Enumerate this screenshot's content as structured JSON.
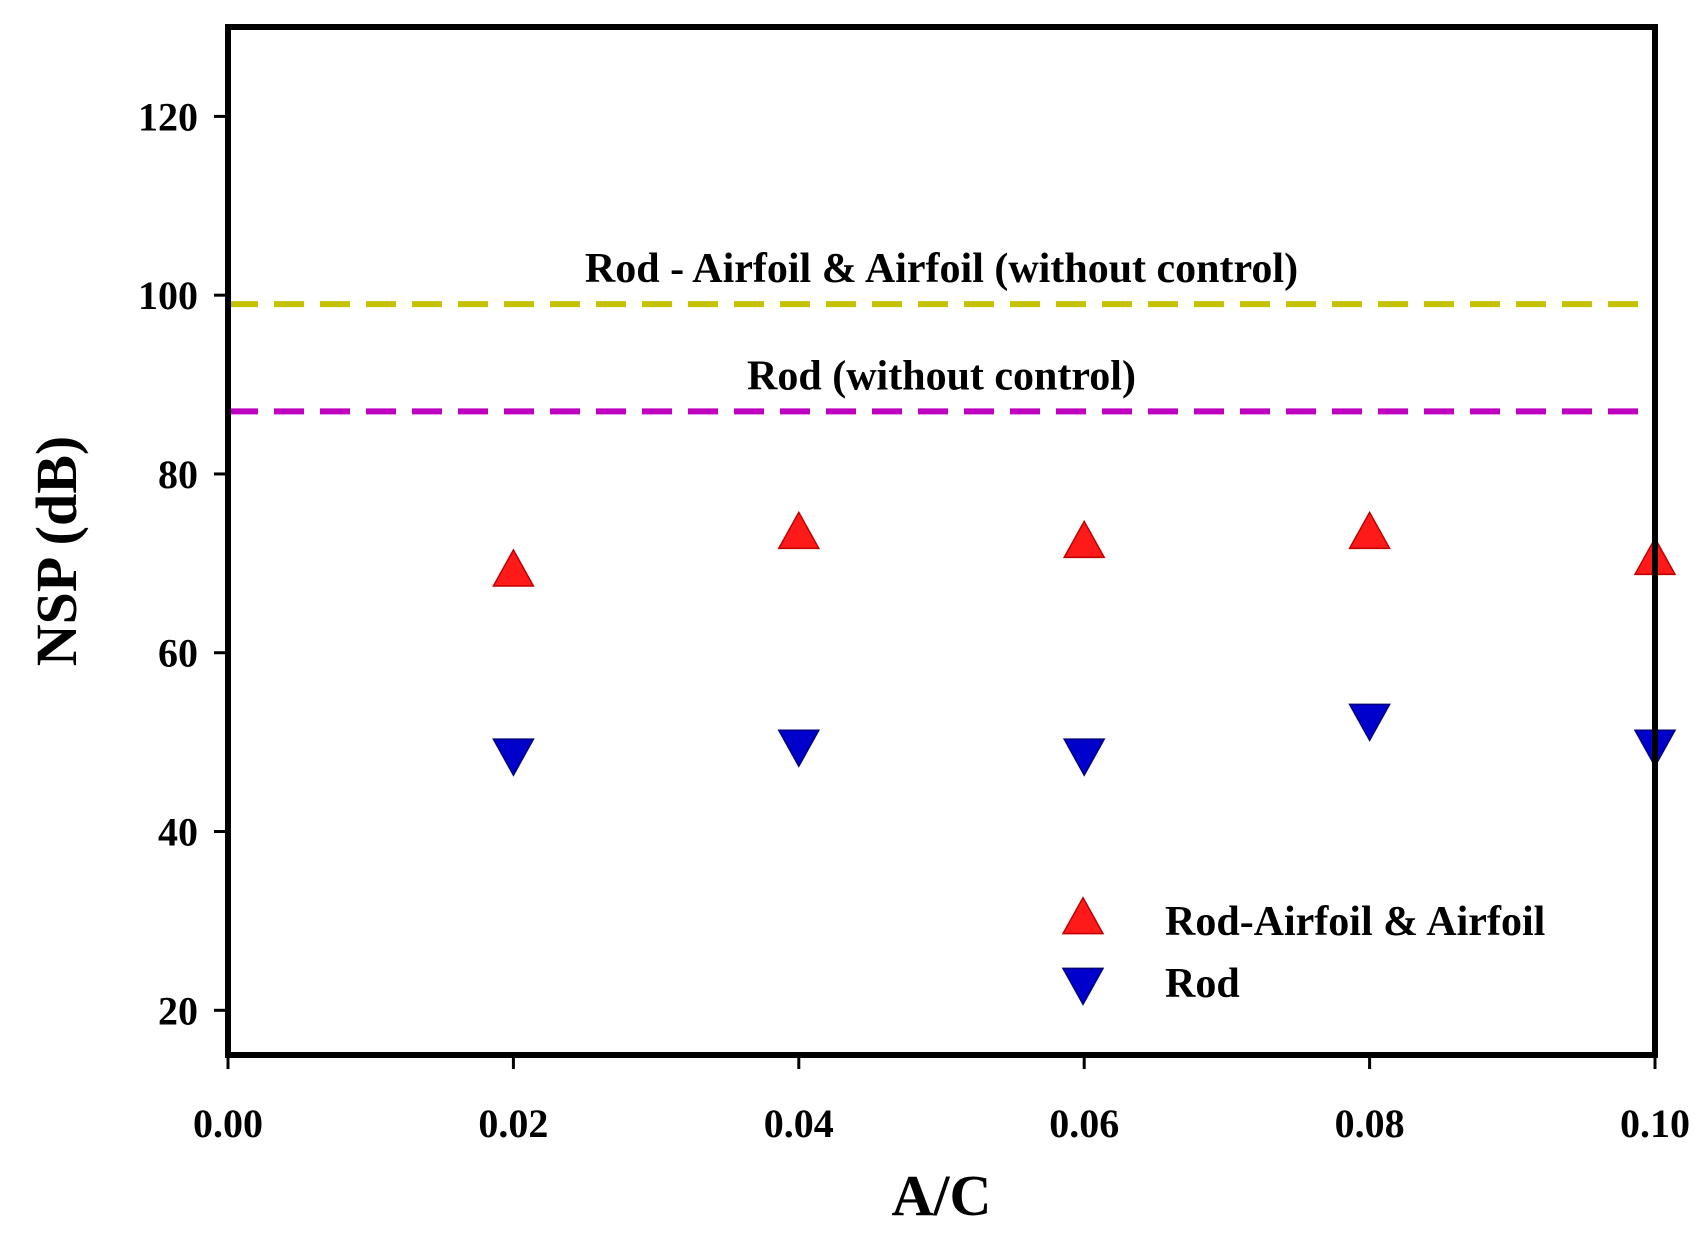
{
  "chart_data": {
    "type": "scatter",
    "title": "",
    "xlabel": "A/C",
    "ylabel": "NSP (dB)",
    "xlim": [
      0.0,
      0.1
    ],
    "ylim": [
      15,
      130
    ],
    "xticks": [
      0.0,
      0.02,
      0.04,
      0.06,
      0.08,
      0.1
    ],
    "xtick_labels": [
      "0.00",
      "0.02",
      "0.04",
      "0.06",
      "0.08",
      "0.10"
    ],
    "yticks": [
      20,
      40,
      60,
      80,
      100,
      120
    ],
    "ytick_labels": [
      "20",
      "40",
      "60",
      "80",
      "100",
      "120"
    ],
    "grid": false,
    "legend_position": "bottom-right",
    "series": [
      {
        "name": "Rod-Airfoil & Airfoil",
        "marker": "triangle-up",
        "color": "#ff1a1a",
        "x": [
          0.02,
          0.04,
          0.06,
          0.08,
          0.1
        ],
        "y": [
          69,
          73.2,
          72.2,
          73.2,
          70.3
        ]
      },
      {
        "name": "Rod",
        "marker": "triangle-down",
        "color": "#0000cc",
        "x": [
          0.02,
          0.04,
          0.06,
          0.08,
          0.1
        ],
        "y": [
          48.8,
          49.8,
          48.8,
          52.7,
          49.8
        ]
      }
    ],
    "reference_lines": [
      {
        "label": "Rod - Airfoil & Airfoil (without control)",
        "y": 99,
        "color": "#c2c200",
        "style": "dashed"
      },
      {
        "label": "Rod (without control)",
        "y": 87,
        "color": "#c000c0",
        "style": "dashed"
      }
    ]
  }
}
